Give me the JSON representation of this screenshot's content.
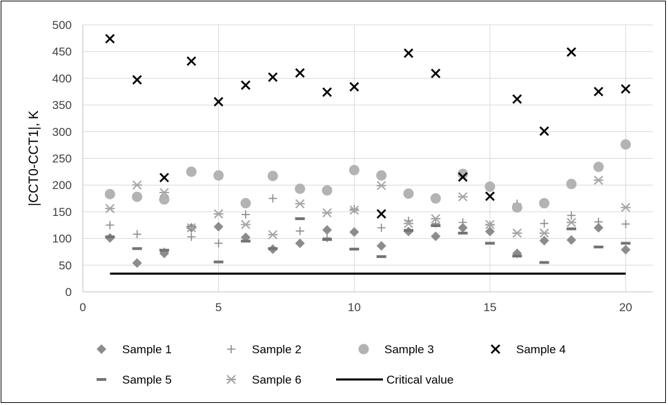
{
  "chart_data": {
    "type": "scatter",
    "title": "",
    "xlabel": "",
    "ylabel": "|CCT0-CCT1|, K",
    "xlim": [
      0,
      21
    ],
    "ylim": [
      0,
      500
    ],
    "x_ticks": [
      "0",
      "5",
      "10",
      "15",
      "20"
    ],
    "y_ticks": [
      "0",
      "50",
      "100",
      "150",
      "200",
      "250",
      "300",
      "350",
      "400",
      "450",
      "500"
    ],
    "grid": true,
    "legend_position": "bottom",
    "x": [
      1,
      2,
      3,
      4,
      5,
      6,
      7,
      8,
      9,
      10,
      11,
      12,
      13,
      14,
      15,
      16,
      17,
      18,
      19,
      20
    ],
    "series": [
      {
        "name": "Sample 1",
        "marker": "diamond",
        "color": "#8c8c8c",
        "values": [
          101,
          54,
          72,
          120,
          122,
          102,
          80,
          91,
          116,
          112,
          86,
          113,
          104,
          120,
          113,
          72,
          96,
          97,
          120,
          79
        ]
      },
      {
        "name": "Sample 2",
        "marker": "plus",
        "color": "#8c8c8c",
        "values": [
          125,
          108,
          75,
          103,
          91,
          145,
          175,
          114,
          101,
          155,
          120,
          133,
          128,
          130,
          125,
          165,
          128,
          143,
          131,
          127
        ]
      },
      {
        "name": "Sample 3",
        "marker": "circle",
        "color": "#b3b3b3",
        "values": [
          183,
          178,
          173,
          225,
          218,
          166,
          217,
          193,
          190,
          228,
          218,
          184,
          175,
          221,
          197,
          158,
          166,
          202,
          234,
          276
        ]
      },
      {
        "name": "Sample 4",
        "marker": "x",
        "color": "#000000",
        "values": [
          474,
          397,
          214,
          432,
          356,
          387,
          402,
          410,
          374,
          384,
          146,
          447,
          409,
          215,
          179,
          361,
          301,
          449,
          375,
          380
        ]
      },
      {
        "name": "Sample 5",
        "marker": "dash",
        "color": "#737373",
        "values": [
          103,
          81,
          78,
          121,
          56,
          95,
          81,
          137,
          98,
          80,
          66,
          115,
          124,
          110,
          91,
          67,
          55,
          118,
          84,
          91
        ]
      },
      {
        "name": "Sample 6",
        "marker": "star",
        "color": "#a6a6a6",
        "values": [
          156,
          200,
          186,
          120,
          146,
          126,
          107,
          165,
          148,
          153,
          199,
          128,
          137,
          178,
          126,
          110,
          110,
          130,
          209,
          158
        ]
      }
    ],
    "lines": [
      {
        "name": "Critical value",
        "color": "#000000",
        "x": [
          1,
          20
        ],
        "values": [
          34,
          34
        ]
      }
    ]
  }
}
